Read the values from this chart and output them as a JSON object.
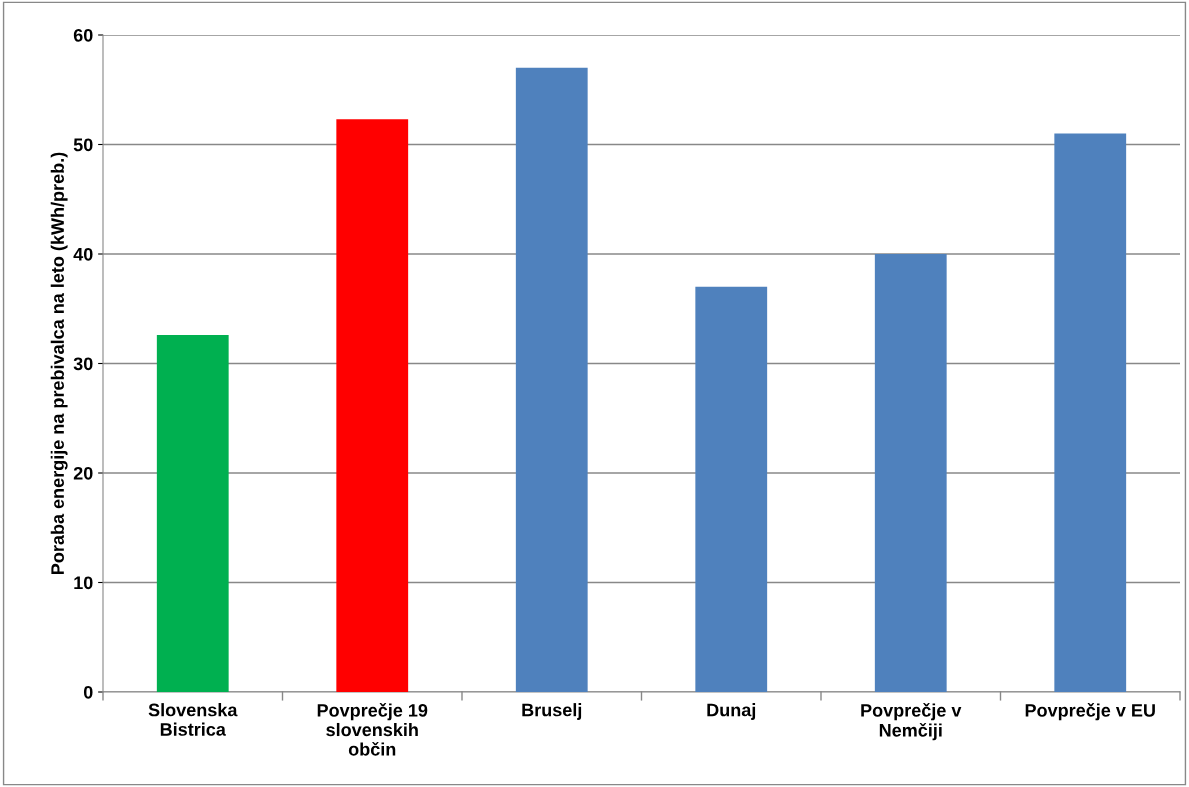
{
  "chart_data": {
    "type": "bar",
    "ylabel": "Poraba energije na prebivalca na leto (kWh/preb.)",
    "categories": [
      "Slovenska\nBistrica",
      "Povprečje 19\nslovenskih\nobčin",
      "Bruselj",
      "Dunaj",
      "Povprečje v\nNemčiji",
      "Povprečje v EU"
    ],
    "values": [
      32.6,
      52.3,
      57,
      37,
      40,
      51
    ],
    "colors": [
      "#00b050",
      "#ff0000",
      "#4f81bd",
      "#4f81bd",
      "#4f81bd",
      "#4f81bd"
    ],
    "ylim": [
      0,
      60
    ],
    "yticks": [
      0,
      10,
      20,
      30,
      40,
      50,
      60
    ],
    "grid": "y",
    "legend": false
  }
}
